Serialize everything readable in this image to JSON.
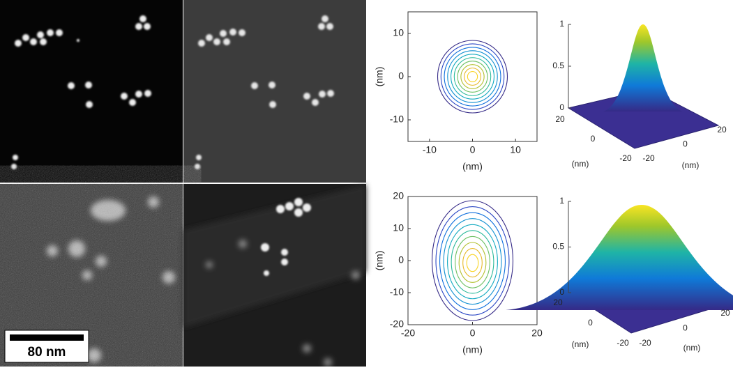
{
  "images": {
    "scale_bar": "80 nm"
  },
  "contour_plots": [
    {
      "xlabel": "(nm)",
      "ylabel": "(nm)",
      "xlim": [
        -15,
        15
      ],
      "ylim": [
        -15,
        15
      ],
      "xticks": [
        -10,
        0,
        10
      ],
      "yticks": [
        -10,
        0,
        10
      ]
    },
    {
      "xlabel": "(nm)",
      "ylabel": "(nm)",
      "xlim": [
        -20,
        20
      ],
      "ylim": [
        -20,
        20
      ],
      "xticks": [
        -20,
        0,
        20
      ],
      "yticks": [
        -20,
        -10,
        0,
        10,
        20
      ]
    }
  ],
  "surface_plots": [
    {
      "zlim": [
        0,
        1
      ],
      "zticks": [
        0,
        0.5,
        1
      ],
      "xticks": [
        20,
        0,
        -20
      ],
      "yticks": [
        -20,
        0,
        20
      ],
      "xlabel": "(nm)",
      "ylabel": "(nm)"
    },
    {
      "zlim": [
        0,
        1
      ],
      "zticks": [
        0,
        0.5,
        1
      ],
      "xticks": [
        20,
        0,
        -20
      ],
      "yticks": [
        -20,
        0,
        20
      ],
      "xlabel": "(nm)",
      "ylabel": "(nm)"
    }
  ]
}
